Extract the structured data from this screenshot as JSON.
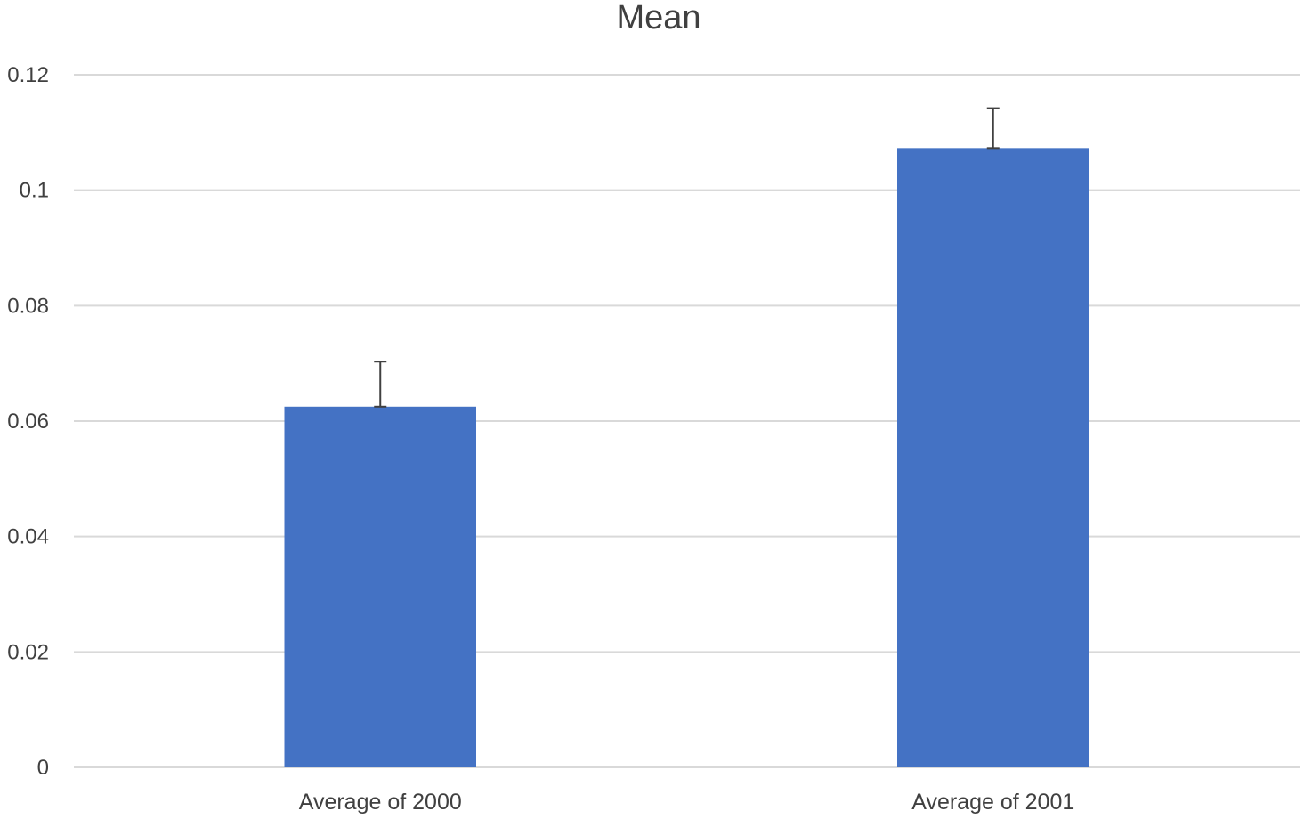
{
  "chart_data": {
    "type": "bar",
    "title": "Mean",
    "xlabel": "",
    "ylabel": "",
    "categories": [
      "Average of 2000",
      "Average of 2001"
    ],
    "series": [
      {
        "values": [
          0.0625,
          0.1073
        ],
        "error_plus": [
          0.0078,
          0.0069
        ],
        "color": "#4472C4"
      }
    ],
    "ylim": [
      0,
      0.12
    ],
    "yticks": [
      0,
      0.02,
      0.04,
      0.06,
      0.08,
      0.1,
      0.12
    ],
    "ytick_labels": [
      "0",
      "0.02",
      "0.04",
      "0.06",
      "0.08",
      "0.1",
      "0.12"
    ],
    "grid": true,
    "legend": "none"
  }
}
